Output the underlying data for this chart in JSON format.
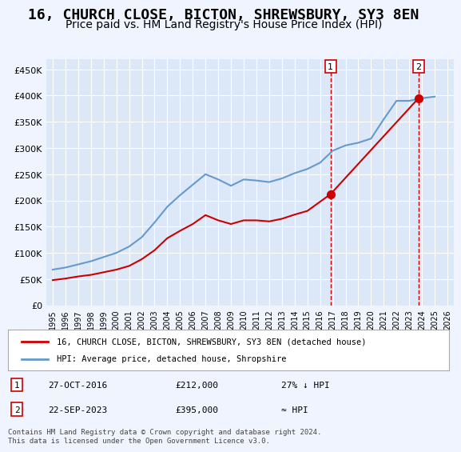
{
  "title": "16, CHURCH CLOSE, BICTON, SHREWSBURY, SY3 8EN",
  "subtitle": "Price paid vs. HM Land Registry's House Price Index (HPI)",
  "title_fontsize": 13,
  "subtitle_fontsize": 10,
  "background_color": "#f0f4ff",
  "plot_bg_color": "#dce8f8",
  "ylim": [
    0,
    470000
  ],
  "yticks": [
    0,
    50000,
    100000,
    150000,
    200000,
    250000,
    300000,
    350000,
    400000,
    450000
  ],
  "ytick_labels": [
    "£0",
    "£50K",
    "£100K",
    "£150K",
    "£200K",
    "£250K",
    "£300K",
    "£350K",
    "£400K",
    "£450K"
  ],
  "hpi_color": "#6699cc",
  "price_color": "#cc0000",
  "dashed_line_color": "#cc0000",
  "marker1_date": "2016.82",
  "marker2_date": "2023.73",
  "transaction1": {
    "date": "27-OCT-2016",
    "price": 212000,
    "label": "27% ↓ HPI"
  },
  "transaction2": {
    "date": "22-SEP-2023",
    "price": 395000,
    "label": "≈ HPI"
  },
  "legend_entries": [
    "16, CHURCH CLOSE, BICTON, SHREWSBURY, SY3 8EN (detached house)",
    "HPI: Average price, detached house, Shropshire"
  ],
  "footnote": "Contains HM Land Registry data © Crown copyright and database right 2024.\nThis data is licensed under the Open Government Licence v3.0.",
  "hpi_years": [
    1995,
    1996,
    1997,
    1998,
    1999,
    2000,
    2001,
    2002,
    2003,
    2004,
    2005,
    2006,
    2007,
    2008,
    2009,
    2010,
    2011,
    2012,
    2013,
    2014,
    2015,
    2016,
    2017,
    2018,
    2019,
    2020,
    2021,
    2022,
    2023,
    2024,
    2025
  ],
  "hpi_values": [
    68000,
    72000,
    78000,
    84000,
    92000,
    100000,
    112000,
    130000,
    158000,
    188000,
    210000,
    230000,
    250000,
    240000,
    228000,
    240000,
    238000,
    235000,
    242000,
    252000,
    260000,
    272000,
    295000,
    305000,
    310000,
    318000,
    355000,
    390000,
    390000,
    395000,
    398000
  ],
  "price_years": [
    1995,
    1996,
    1997,
    1998,
    1999,
    2000,
    2001,
    2002,
    2003,
    2004,
    2005,
    2006,
    2007,
    2008,
    2009,
    2010,
    2011,
    2012,
    2013,
    2014,
    2015,
    2016.82,
    2023.73
  ],
  "price_values": [
    48000,
    51000,
    55000,
    58000,
    63000,
    68000,
    75000,
    88000,
    105000,
    128000,
    142000,
    155000,
    172000,
    162000,
    155000,
    162000,
    162000,
    160000,
    165000,
    173000,
    180000,
    212000,
    395000
  ],
  "xtick_years": [
    1995,
    1996,
    1997,
    1998,
    1999,
    2000,
    2001,
    2002,
    2003,
    2004,
    2005,
    2006,
    2007,
    2008,
    2009,
    2010,
    2011,
    2012,
    2013,
    2014,
    2015,
    2016,
    2017,
    2018,
    2019,
    2020,
    2021,
    2022,
    2023,
    2024,
    2025,
    2026
  ],
  "xlim": [
    1994.5,
    2026.5
  ]
}
